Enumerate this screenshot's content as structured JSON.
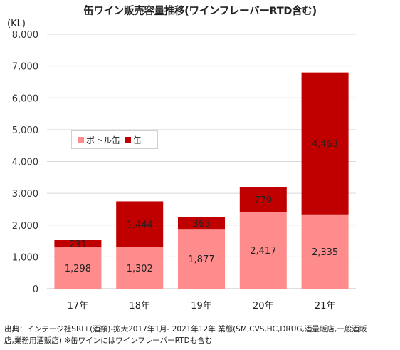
{
  "title": "缶ワイン販売容量推移(ワインフレーバーRTD含む)",
  "unit": "(KL)",
  "source_line1": "出典：インテージ社SRI+(酒類)-拡大2017年1月- 2021年12年 業態(SM,CVS,HC,DRUG,酒量販店,一般酒販",
  "source_line2": "店,業務用酒販店) ※缶ワインにはワインフレーバーRTDも含む",
  "colors": {
    "bottle_can": "#ff8c8c",
    "can": "#c00000"
  },
  "chart_data": {
    "type": "bar",
    "stacked": true,
    "categories": [
      "17年",
      "18年",
      "19年",
      "20年",
      "21年"
    ],
    "series": [
      {
        "name": "ボトル缶",
        "values": [
          1298,
          1302,
          1877,
          2417,
          2335
        ]
      },
      {
        "name": "缶",
        "values": [
          231,
          1444,
          365,
          779,
          4463
        ]
      }
    ],
    "ylim": [
      0,
      8000
    ],
    "yticks": [
      "0",
      "1,000",
      "2,000",
      "3,000",
      "4,000",
      "5,000",
      "6,000",
      "7,000",
      "8,000"
    ],
    "data_labels": [
      [
        "1,298",
        "1,302",
        "1,877",
        "2,417",
        "2,335"
      ],
      [
        "231",
        "1,444",
        "365",
        "779",
        "4,463"
      ]
    ],
    "grid": true,
    "legend": "inside-left"
  }
}
